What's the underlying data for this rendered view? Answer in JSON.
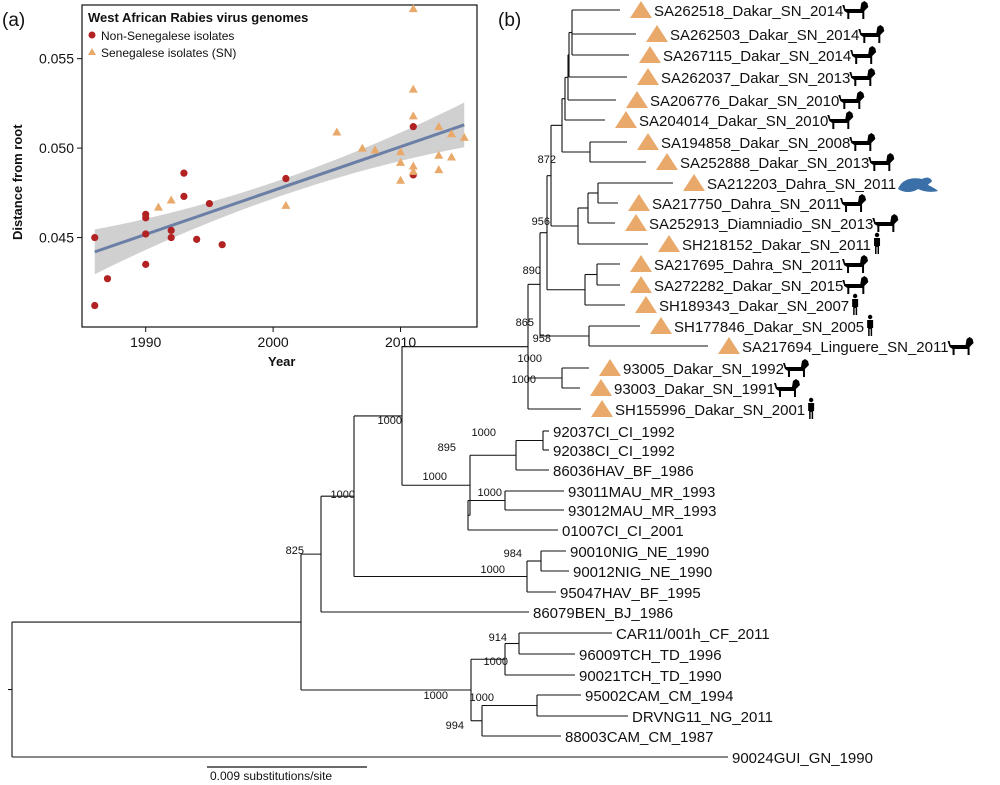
{
  "panel_a_label": "(a)",
  "panel_b_label": "(b)",
  "colors": {
    "non_senegalese": "#b22222",
    "senegalese": "#e8a96a",
    "regression": "#6b7fa6",
    "ci_band": "#c8c8c8",
    "otter": "#3a6fa8"
  },
  "chart_data": [
    {
      "type": "scatter",
      "title": "West African Rabies virus genomes",
      "xlabel": "Year",
      "ylabel": "Distance from root",
      "xlim": [
        1985,
        2016
      ],
      "ylim": [
        0.04,
        0.058
      ],
      "xticks": [
        1990,
        2000,
        2010
      ],
      "yticks": [
        0.045,
        0.05,
        0.055
      ],
      "ytick_labels": [
        "0.045",
        "0.050",
        "0.055"
      ],
      "legend_position": "top-left",
      "regression": {
        "x": [
          1986,
          2015
        ],
        "y": [
          0.0442,
          0.0513
        ]
      },
      "series": [
        {
          "name": "Non-Senegalese isolates",
          "marker": "circle",
          "points": [
            [
              1986,
              0.045
            ],
            [
              1986,
              0.0412
            ],
            [
              1987,
              0.0427
            ],
            [
              1990,
              0.0463
            ],
            [
              1990,
              0.0461
            ],
            [
              1990,
              0.0452
            ],
            [
              1990,
              0.0435
            ],
            [
              1992,
              0.0454
            ],
            [
              1992,
              0.045
            ],
            [
              1993,
              0.0486
            ],
            [
              1993,
              0.0473
            ],
            [
              1994,
              0.0449
            ],
            [
              1995,
              0.0469
            ],
            [
              1996,
              0.0446
            ],
            [
              2001,
              0.0483
            ],
            [
              2011,
              0.0512
            ],
            [
              2011,
              0.0485
            ]
          ]
        },
        {
          "name": "Senegalese isolates (SN)",
          "marker": "triangle",
          "points": [
            [
              1991,
              0.0467
            ],
            [
              1992,
              0.0471
            ],
            [
              2001,
              0.0468
            ],
            [
              2005,
              0.0509
            ],
            [
              2007,
              0.05
            ],
            [
              2008,
              0.0499
            ],
            [
              2010,
              0.0498
            ],
            [
              2010,
              0.0492
            ],
            [
              2010,
              0.0482
            ],
            [
              2011,
              0.0578
            ],
            [
              2011,
              0.0533
            ],
            [
              2011,
              0.0518
            ],
            [
              2011,
              0.049
            ],
            [
              2011,
              0.0487
            ],
            [
              2013,
              0.0512
            ],
            [
              2013,
              0.0496
            ],
            [
              2013,
              0.0488
            ],
            [
              2014,
              0.0508
            ],
            [
              2014,
              0.0495
            ],
            [
              2015,
              0.0506
            ]
          ]
        }
      ]
    },
    {
      "type": "tree",
      "scale_bar_label": "0.009 substitutions/site",
      "leaves": [
        {
          "name": "SA262518_Dakar_SN_2014",
          "host": "dog",
          "marker": "triangle"
        },
        {
          "name": "SA262503_Dakar_SN_2014",
          "host": "dog",
          "marker": "triangle"
        },
        {
          "name": "SA267115_Dakar_SN_2014",
          "host": "dog",
          "marker": "triangle"
        },
        {
          "name": "SA262037_Dakar_SN_2013",
          "host": "dog",
          "marker": "triangle"
        },
        {
          "name": "SA206776_Dakar_SN_2010",
          "host": "dog",
          "marker": "triangle"
        },
        {
          "name": "SA204014_Dakar_SN_2010",
          "host": "dog",
          "marker": "triangle"
        },
        {
          "name": "SA194858_Dakar_SN_2008",
          "host": "dog",
          "marker": "triangle"
        },
        {
          "name": "SA252888_Dakar_SN_2013",
          "host": "dog",
          "marker": "triangle"
        },
        {
          "name": "SA212203_Dahra_SN_2011",
          "host": "otter",
          "marker": "triangle"
        },
        {
          "name": "SA217750_Dahra_SN_2011",
          "host": "dog",
          "marker": "triangle"
        },
        {
          "name": "SA252913_Diamniadio_SN_2013",
          "host": "dog",
          "marker": "triangle"
        },
        {
          "name": "SH218152_Dakar_SN_2011",
          "host": "human",
          "marker": "triangle"
        },
        {
          "name": "SA217695_Dahra_SN_2011",
          "host": "dog",
          "marker": "triangle"
        },
        {
          "name": "SA272282_Dakar_SN_2015",
          "host": "dog",
          "marker": "triangle"
        },
        {
          "name": "SH189343_Dakar_SN_2007",
          "host": "human",
          "marker": "triangle"
        },
        {
          "name": "SH177846_Dakar_SN_2005",
          "host": "human",
          "marker": "triangle"
        },
        {
          "name": "SA217694_Linguere_SN_2011",
          "host": "dog",
          "marker": "triangle"
        },
        {
          "name": "93005_Dakar_SN_1992",
          "host": "dog",
          "marker": "triangle"
        },
        {
          "name": "93003_Dakar_SN_1991",
          "host": "dog",
          "marker": "triangle"
        },
        {
          "name": "SH155996_Dakar_SN_2001",
          "host": "human",
          "marker": "triangle"
        },
        {
          "name": "92037CI_CI_1992",
          "host": "",
          "marker": ""
        },
        {
          "name": "92038CI_CI_1992",
          "host": "",
          "marker": ""
        },
        {
          "name": "86036HAV_BF_1986",
          "host": "",
          "marker": ""
        },
        {
          "name": "93011MAU_MR_1993",
          "host": "",
          "marker": ""
        },
        {
          "name": "93012MAU_MR_1993",
          "host": "",
          "marker": ""
        },
        {
          "name": "01007CI_CI_2001",
          "host": "",
          "marker": ""
        },
        {
          "name": "90010NIG_NE_1990",
          "host": "",
          "marker": ""
        },
        {
          "name": "90012NIG_NE_1990",
          "host": "",
          "marker": ""
        },
        {
          "name": "95047HAV_BF_1995",
          "host": "",
          "marker": ""
        },
        {
          "name": "86079BEN_BJ_1986",
          "host": "",
          "marker": ""
        },
        {
          "name": "CAR11/001h_CF_2011",
          "host": "",
          "marker": ""
        },
        {
          "name": "96009TCH_TD_1996",
          "host": "",
          "marker": ""
        },
        {
          "name": "90021TCH_TD_1990",
          "host": "",
          "marker": ""
        },
        {
          "name": "95002CAM_CM_1994",
          "host": "",
          "marker": ""
        },
        {
          "name": "DRVNG11_NG_2011",
          "host": "",
          "marker": ""
        },
        {
          "name": "88003CAM_CM_1987",
          "host": "",
          "marker": ""
        },
        {
          "name": "90024GUI_GN_1990",
          "host": "",
          "marker": ""
        }
      ],
      "bootstrap_values": [
        "872",
        "956",
        "890",
        "865",
        "958",
        "1000",
        "1000",
        "1000",
        "1000",
        "895",
        "1000",
        "1000",
        "1000",
        "825",
        "984",
        "1000",
        "914",
        "1000",
        "1000",
        "1000",
        "994"
      ]
    }
  ]
}
